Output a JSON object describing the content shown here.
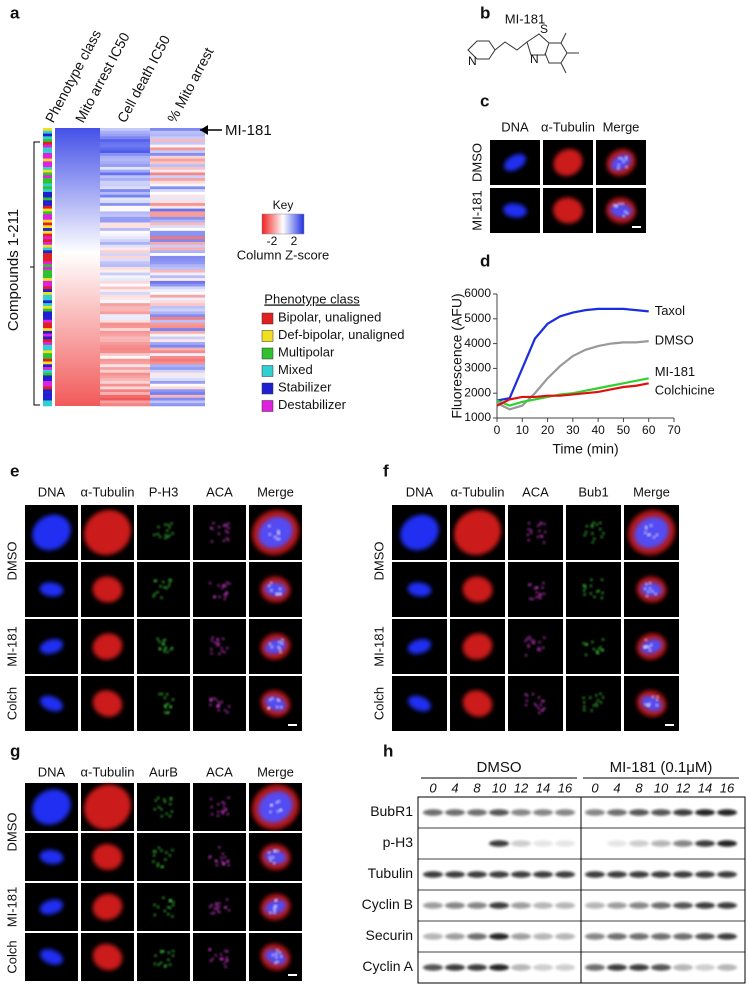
{
  "panels": {
    "a": {
      "label": "a",
      "columns": [
        "Phenotype class",
        "Mito arrest IC50",
        "Cell death  IC50",
        "% Mito arrest"
      ],
      "highlight": "MI-181",
      "y_label": "Compounds 1-211",
      "key": {
        "title": "Key",
        "min": "-2",
        "max": "2",
        "caption": "Column Z-score"
      },
      "legend": {
        "title": "Phenotype class",
        "items": [
          {
            "name": "Bipolar, unaligned",
            "color": "#e02020"
          },
          {
            "name": "Def-bipolar, unaligned",
            "color": "#f0e020"
          },
          {
            "name": "Multipolar",
            "color": "#30c030"
          },
          {
            "name": "Mixed",
            "color": "#30d0d0"
          },
          {
            "name": "Stabilizer",
            "color": "#2020d0"
          },
          {
            "name": "Destabilizer",
            "color": "#e020e0"
          }
        ]
      }
    },
    "b": {
      "label": "b",
      "compound": "MI-181"
    },
    "c": {
      "label": "c",
      "channels": [
        {
          "name": "DNA",
          "color": "#3a6ed8"
        },
        {
          "name": "α-Tubulin",
          "color": "#e02020"
        },
        {
          "name": "Merge",
          "color": "#000000"
        }
      ],
      "conditions": [
        "DMSO",
        "MI-181"
      ]
    },
    "d": {
      "label": "d"
    },
    "e": {
      "label": "e",
      "channels": [
        {
          "name": "DNA",
          "color": "#3a6ed8"
        },
        {
          "name": "α-Tubulin",
          "color": "#e02020"
        },
        {
          "name": "P-H3",
          "color": "#9acd4a"
        },
        {
          "name": "ACA",
          "color": "#d040d0"
        },
        {
          "name": "Merge",
          "color": "#000000"
        }
      ],
      "conditions": [
        "DMSO",
        "MI-181",
        "Colch"
      ]
    },
    "f": {
      "label": "f",
      "channels": [
        {
          "name": "DNA",
          "color": "#3a6ed8"
        },
        {
          "name": "α-Tubulin",
          "color": "#e02020"
        },
        {
          "name": "ACA",
          "color": "#d040d0"
        },
        {
          "name": "Bub1",
          "color": "#9acd4a"
        },
        {
          "name": "Merge",
          "color": "#000000"
        }
      ],
      "conditions": [
        "DMSO",
        "MI-181",
        "Colch"
      ]
    },
    "g": {
      "label": "g",
      "channels": [
        {
          "name": "DNA",
          "color": "#3a6ed8"
        },
        {
          "name": "α-Tubulin",
          "color": "#e02020"
        },
        {
          "name": "AurB",
          "color": "#9acd4a"
        },
        {
          "name": "ACA",
          "color": "#d040d0"
        },
        {
          "name": "Merge",
          "color": "#000000"
        }
      ],
      "conditions": [
        "DMSO",
        "MI-181",
        "Colch"
      ]
    },
    "h": {
      "label": "h",
      "groups": [
        "DMSO",
        "MI-181 (0.1μM)"
      ],
      "times": [
        "0",
        "4",
        "8",
        "10",
        "12",
        "14",
        "16"
      ],
      "proteins": [
        "BubR1",
        "p-H3",
        "Tubulin",
        "Cyclin B",
        "Securin",
        "Cyclin A"
      ]
    }
  },
  "chart_data": {
    "type": "line",
    "x_label": "Time (min)",
    "y_label": "Fluorescence (AFU)",
    "x": [
      0,
      5,
      10,
      15,
      20,
      25,
      30,
      35,
      40,
      45,
      50,
      55,
      60
    ],
    "series": [
      {
        "name": "Taxol",
        "color": "#1a2ee0",
        "values": [
          1700,
          1800,
          3000,
          4200,
          4800,
          5100,
          5250,
          5350,
          5400,
          5400,
          5400,
          5350,
          5300
        ]
      },
      {
        "name": "DMSO",
        "color": "#999999",
        "values": [
          1600,
          1350,
          1500,
          2000,
          2600,
          3100,
          3500,
          3750,
          3900,
          4000,
          4050,
          4050,
          4100
        ]
      },
      {
        "name": "MI-181",
        "color": "#30d030",
        "values": [
          1700,
          1500,
          1650,
          1750,
          1850,
          1950,
          2000,
          2100,
          2200,
          2300,
          2400,
          2500,
          2600
        ]
      },
      {
        "name": "Colchicine",
        "color": "#e01010",
        "values": [
          1500,
          1750,
          1850,
          1850,
          1900,
          1900,
          1950,
          2000,
          2050,
          2150,
          2250,
          2300,
          2400
        ]
      }
    ],
    "xlim": [
      0,
      70
    ],
    "xticks": [
      0,
      10,
      20,
      30,
      40,
      50,
      60,
      70
    ],
    "ylim": [
      1000,
      6000
    ],
    "yticks": [
      1000,
      2000,
      3000,
      4000,
      5000,
      6000
    ]
  }
}
